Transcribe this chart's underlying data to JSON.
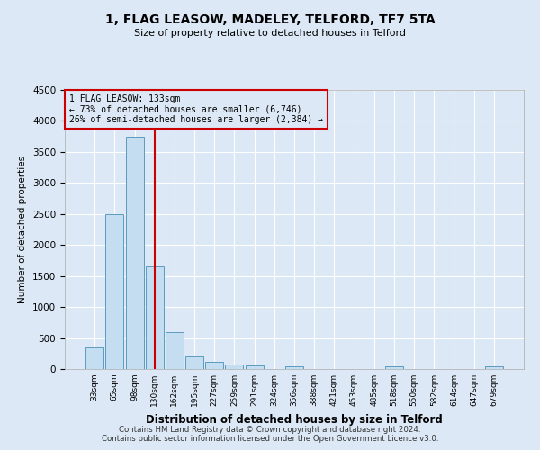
{
  "title1": "1, FLAG LEASOW, MADELEY, TELFORD, TF7 5TA",
  "title2": "Size of property relative to detached houses in Telford",
  "xlabel": "Distribution of detached houses by size in Telford",
  "ylabel": "Number of detached properties",
  "categories": [
    "33sqm",
    "65sqm",
    "98sqm",
    "130sqm",
    "162sqm",
    "195sqm",
    "227sqm",
    "259sqm",
    "291sqm",
    "324sqm",
    "356sqm",
    "388sqm",
    "421sqm",
    "453sqm",
    "485sqm",
    "518sqm",
    "550sqm",
    "582sqm",
    "614sqm",
    "647sqm",
    "679sqm"
  ],
  "values": [
    350,
    2500,
    3750,
    1650,
    600,
    210,
    110,
    75,
    55,
    0,
    50,
    0,
    0,
    0,
    0,
    50,
    0,
    0,
    0,
    0,
    50
  ],
  "bar_color": "#c5ddf0",
  "bar_edge_color": "#5b9bbf",
  "vline_index": 3,
  "vline_color": "#cc0000",
  "annotation_text": "1 FLAG LEASOW: 133sqm\n← 73% of detached houses are smaller (6,746)\n26% of semi-detached houses are larger (2,384) →",
  "annotation_box_color": "#cc0000",
  "ylim": [
    0,
    4500
  ],
  "yticks": [
    0,
    500,
    1000,
    1500,
    2000,
    2500,
    3000,
    3500,
    4000,
    4500
  ],
  "background_color": "#dce8f5",
  "grid_color": "#ffffff",
  "footer": "Contains HM Land Registry data © Crown copyright and database right 2024.\nContains public sector information licensed under the Open Government Licence v3.0."
}
